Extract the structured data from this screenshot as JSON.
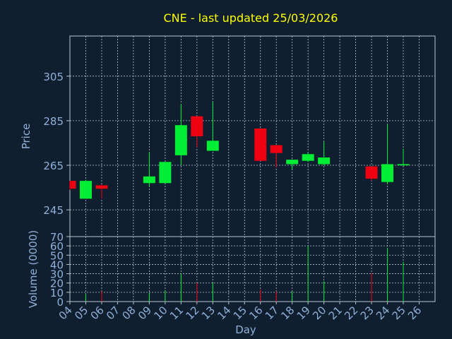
{
  "colors": {
    "background": "#0f1f30",
    "title": "#ffff00",
    "axis_text": "#8fb0d8",
    "axis_label": "#8fb0d8",
    "grid": "#b9c4d0",
    "up": "#00ee33",
    "down": "#ee0011"
  },
  "chart_data": [
    {
      "type": "candlestick",
      "title": "CNE - last updated 25/03/2026",
      "ylabel": "Price",
      "ylim": [
        233,
        323
      ],
      "yticks": [
        245,
        265,
        285,
        305
      ],
      "grid": true,
      "x_tick_labels": [
        "04",
        "05",
        "06",
        "07",
        "08",
        "09",
        "10",
        "11",
        "12",
        "13",
        "14",
        "15",
        "16",
        "17",
        "18",
        "19",
        "20",
        "21",
        "22",
        "23",
        "24",
        "25",
        "26"
      ],
      "candles": [
        {
          "day": "04",
          "open": 258,
          "high": 258,
          "low": 254,
          "close": 254.5
        },
        {
          "day": "05",
          "open": 250,
          "high": 258.5,
          "low": 250,
          "close": 258
        },
        {
          "day": "06",
          "open": 256,
          "high": 256.5,
          "low": 250,
          "close": 254.5
        },
        {
          "day": "09",
          "open": 257,
          "high": 271,
          "low": 255.5,
          "close": 260
        },
        {
          "day": "10",
          "open": 257,
          "high": 266.5,
          "low": 257,
          "close": 266.5
        },
        {
          "day": "11",
          "open": 269.5,
          "high": 292.5,
          "low": 265,
          "close": 283
        },
        {
          "day": "12",
          "open": 287,
          "high": 287,
          "low": 273,
          "close": 278
        },
        {
          "day": "13",
          "open": 271.5,
          "high": 293.5,
          "low": 271.5,
          "close": 276
        },
        {
          "day": "16",
          "open": 281.5,
          "high": 281.5,
          "low": 267,
          "close": 267
        },
        {
          "day": "17",
          "open": 274,
          "high": 274,
          "low": 264,
          "close": 270.5
        },
        {
          "day": "18",
          "open": 265.5,
          "high": 267.5,
          "low": 263,
          "close": 267.5
        },
        {
          "day": "19",
          "open": 267,
          "high": 271,
          "low": 266.5,
          "close": 270
        },
        {
          "day": "20",
          "open": 265.5,
          "high": 275.5,
          "low": 265,
          "close": 268.5
        },
        {
          "day": "23",
          "open": 264.5,
          "high": 264.5,
          "low": 258,
          "close": 259
        },
        {
          "day": "24",
          "open": 257.5,
          "high": 283.5,
          "low": 256.5,
          "close": 265.5
        },
        {
          "day": "25",
          "open": 265,
          "high": 272.5,
          "low": 264.5,
          "close": 265.5
        }
      ]
    },
    {
      "type": "bar",
      "xlabel": "Day",
      "ylabel": "Volume (0000)",
      "ylim": [
        0,
        70
      ],
      "yticks": [
        0,
        10,
        20,
        30,
        40,
        50,
        60,
        70
      ],
      "grid": true,
      "x_tick_labels": [
        "04",
        "05",
        "06",
        "07",
        "08",
        "09",
        "10",
        "11",
        "12",
        "13",
        "14",
        "15",
        "16",
        "17",
        "18",
        "19",
        "20",
        "21",
        "22",
        "23",
        "24",
        "25",
        "26"
      ],
      "volumes": [
        {
          "day": "05",
          "value": 8,
          "direction": "up"
        },
        {
          "day": "06",
          "value": 11,
          "direction": "down"
        },
        {
          "day": "09",
          "value": 10,
          "direction": "up"
        },
        {
          "day": "10",
          "value": 12,
          "direction": "up"
        },
        {
          "day": "11",
          "value": 30,
          "direction": "up"
        },
        {
          "day": "12",
          "value": 20,
          "direction": "down"
        },
        {
          "day": "13",
          "value": 20,
          "direction": "up"
        },
        {
          "day": "16",
          "value": 13,
          "direction": "down"
        },
        {
          "day": "17",
          "value": 11,
          "direction": "down"
        },
        {
          "day": "18",
          "value": 11,
          "direction": "up"
        },
        {
          "day": "19",
          "value": 60,
          "direction": "up"
        },
        {
          "day": "20",
          "value": 22,
          "direction": "up"
        },
        {
          "day": "23",
          "value": 31,
          "direction": "down"
        },
        {
          "day": "24",
          "value": 58,
          "direction": "up"
        },
        {
          "day": "25",
          "value": 43,
          "direction": "up"
        }
      ]
    }
  ]
}
